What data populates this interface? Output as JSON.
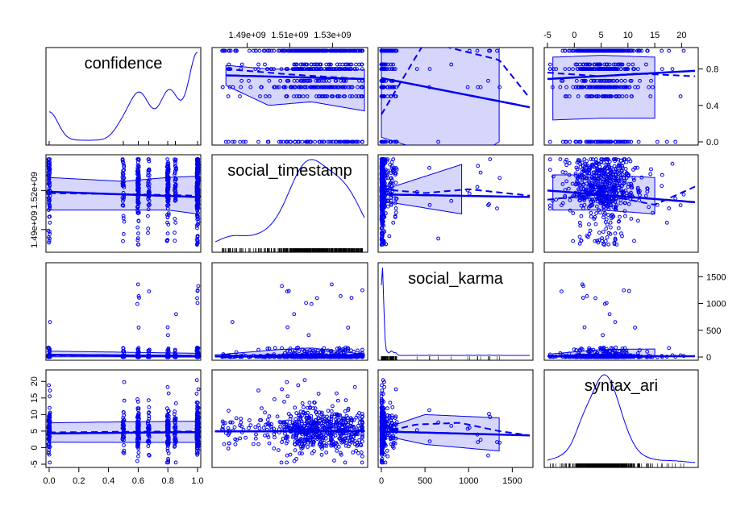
{
  "chart_data": {
    "type": "scatter",
    "title": "",
    "variables": [
      "confidence",
      "social_timestamp",
      "social_karma",
      "syntax_ari"
    ],
    "axis_ticks": {
      "confidence": {
        "values": [
          0.0,
          0.2,
          0.4,
          0.6,
          0.8,
          1.0
        ],
        "labels": [
          "0.0",
          "0.2",
          "0.4",
          "0.6",
          "0.8",
          "1.0"
        ],
        "range": [
          0.0,
          1.0
        ]
      },
      "social_timestamp": {
        "values": [
          1490000000.0,
          1520000000.0
        ],
        "labels": [
          "1.49e+09",
          "1.52e+09"
        ],
        "top_values": [
          1490000000.0,
          1510000000.0,
          1530000000.0
        ],
        "top_labels": [
          "1.49e+09",
          "1.51e+09",
          "1.53e+09"
        ],
        "range": [
          1475000000.0,
          1545000000.0
        ]
      },
      "social_karma": {
        "values": [
          0,
          500,
          1000,
          1500
        ],
        "labels": [
          "0",
          "500",
          "1000",
          "1500"
        ],
        "right_values": [
          0,
          500,
          1000,
          1500
        ],
        "right_labels": [
          "0",
          "500",
          "1000",
          "1500"
        ],
        "range": [
          0,
          1700
        ]
      },
      "syntax_ari": {
        "values": [
          -5,
          0,
          5,
          10,
          15,
          20
        ],
        "labels": [
          "-5",
          "0",
          "5",
          "10",
          "15",
          "20"
        ],
        "top_values": [
          -5,
          0,
          5,
          10,
          15,
          20
        ],
        "top_labels": [
          "-5",
          "0",
          "5",
          "10",
          "15",
          "20"
        ],
        "range": [
          -5,
          22.5
        ]
      },
      "confidence_right": {
        "values": [
          0.0,
          0.4,
          0.8
        ],
        "labels": [
          "0.0",
          "0.4",
          "0.8"
        ]
      },
      "syntax_ari_left": {
        "values": [
          -5,
          0,
          5,
          10,
          15,
          20
        ],
        "labels": [
          "-5",
          "0",
          "5",
          "10",
          "15",
          "20"
        ]
      }
    },
    "series_color": "#0000ee",
    "panels": {
      "conf_vs_ts": {
        "fit_solid": [
          [
            1480000000.0,
            0.73
          ],
          [
            1545000000.0,
            0.69
          ]
        ],
        "fit_dashed": [
          [
            1480000000.0,
            0.8
          ],
          [
            1510000000.0,
            0.74
          ],
          [
            1545000000.0,
            0.69
          ]
        ],
        "band": [
          [
            1480000000.0,
            0.84,
            0.62
          ],
          [
            1500000000.0,
            0.8,
            0.4
          ],
          [
            1520000000.0,
            0.79,
            0.44
          ],
          [
            1545000000.0,
            0.79,
            0.34
          ]
        ]
      },
      "conf_vs_karma": {
        "fit_solid": [
          [
            0,
            0.7
          ],
          [
            1700,
            0.38
          ]
        ],
        "fit_dashed": [
          [
            0,
            0.3
          ],
          [
            500,
            1.1
          ],
          [
            1350,
            0.9
          ],
          [
            1700,
            0.48
          ]
        ],
        "band": [
          [
            0,
            1.05,
            0.05
          ],
          [
            500,
            1.05,
            -0.1
          ],
          [
            1000,
            1.05,
            -0.2
          ],
          [
            1350,
            1.05,
            0.0
          ]
        ]
      },
      "conf_vs_ari": {
        "fit_solid": [
          [
            -5,
            0.69
          ],
          [
            22.5,
            0.78
          ]
        ],
        "fit_dashed": [
          [
            -5,
            0.76
          ],
          [
            5,
            0.72
          ],
          [
            12,
            0.75
          ],
          [
            22.5,
            0.72
          ]
        ],
        "band": [
          [
            -4,
            0.93,
            0.24
          ],
          [
            5,
            0.95,
            0.26
          ],
          [
            15,
            0.93,
            0.26
          ]
        ]
      },
      "ts_vs_conf": {
        "fit_solid": [
          [
            0,
            1519000000.0
          ],
          [
            1,
            1515000000.0
          ]
        ],
        "fit_dashed": [
          [
            0,
            1518000000.0
          ],
          [
            0.6,
            1517000000.0
          ],
          [
            1,
            1516000000.0
          ]
        ],
        "band": [
          [
            0,
            1530000000.0,
            1505000000.0
          ],
          [
            0.5,
            1527000000.0,
            1505000000.0
          ],
          [
            0.8,
            1530000000.0,
            1505000000.0
          ],
          [
            1,
            1531000000.0,
            1502000000.0
          ]
        ]
      },
      "ts_vs_karma": {
        "fit_solid": [
          [
            0,
            1517000000.0
          ],
          [
            1700,
            1515000000.0
          ]
        ],
        "fit_dashed": [
          [
            0,
            1521000000.0
          ],
          [
            500,
            1518000000.0
          ],
          [
            1000,
            1521000000.0
          ],
          [
            1700,
            1516000000.0
          ]
        ],
        "band": [
          [
            0,
            1520000000.0,
            1512000000.0
          ],
          [
            920,
            1540000000.0,
            1502000000.0
          ]
        ]
      },
      "ts_vs_ari": {
        "fit_solid": [
          [
            -5,
            1520000000.0
          ],
          [
            22.5,
            1511000000.0
          ]
        ],
        "fit_dashed": [
          [
            -5,
            1513000000.0
          ],
          [
            5,
            1517000000.0
          ],
          [
            15,
            1509000000.0
          ],
          [
            22.5,
            1523000000.0
          ]
        ],
        "band": [
          [
            -4,
            1532000000.0,
            1505000000.0
          ],
          [
            5,
            1532000000.0,
            1505000000.0
          ],
          [
            15,
            1530000000.0,
            1502000000.0
          ]
        ]
      },
      "karma_vs_conf": {
        "fit_solid": [
          [
            0,
            40
          ],
          [
            1,
            20
          ]
        ],
        "fit_dashed": [
          [
            0,
            30
          ],
          [
            1,
            25
          ]
        ],
        "band": [
          [
            0,
            110,
            5
          ],
          [
            1,
            70,
            0
          ]
        ]
      },
      "karma_vs_ts": {
        "fit_solid": [
          [
            1475000000.0,
            10
          ],
          [
            1545000000.0,
            15
          ]
        ],
        "fit_dashed": [
          [
            1475000000.0,
            10
          ],
          [
            1510000000.0,
            40
          ],
          [
            1545000000.0,
            15
          ]
        ],
        "band": [
          [
            1475000000.0,
            40,
            0
          ],
          [
            1505000000.0,
            140,
            0
          ],
          [
            1520000000.0,
            170,
            0
          ],
          [
            1545000000.0,
            50,
            0
          ]
        ]
      },
      "karma_vs_ari": {
        "fit_solid": [
          [
            -5,
            15
          ],
          [
            22.5,
            15
          ]
        ],
        "fit_dashed": [
          [
            -5,
            20
          ],
          [
            22.5,
            15
          ]
        ],
        "band": [
          [
            -4,
            60,
            0
          ],
          [
            5,
            140,
            0
          ],
          [
            15,
            150,
            0
          ]
        ]
      },
      "ari_vs_conf": {
        "fit_solid": [
          [
            0,
            4.3
          ],
          [
            1,
            4.7
          ]
        ],
        "fit_dashed": [
          [
            0,
            4.6
          ],
          [
            0.5,
            4.8
          ],
          [
            1,
            4.9
          ]
        ],
        "band": [
          [
            0,
            7.5,
            1.7
          ],
          [
            0.5,
            7.8,
            1.6
          ],
          [
            1,
            8.0,
            1.6
          ]
        ]
      },
      "ari_vs_ts": {
        "fit_solid": [
          [
            1475000000.0,
            4.9
          ],
          [
            1545000000.0,
            5.0
          ]
        ],
        "fit_dashed": [
          [
            1475000000.0,
            5.0
          ],
          [
            1545000000.0,
            5.0
          ]
        ],
        "band": [
          [
            1475000000.0,
            5.1,
            4.8
          ],
          [
            1545000000.0,
            5.2,
            4.8
          ]
        ]
      },
      "ari_vs_karma": {
        "fit_solid": [
          [
            0,
            4.9
          ],
          [
            1700,
            3.7
          ]
        ],
        "fit_dashed": [
          [
            0,
            4.5
          ],
          [
            400,
            7.0
          ],
          [
            900,
            7.5
          ],
          [
            1350,
            5.0
          ],
          [
            1700,
            3.7
          ]
        ],
        "band": [
          [
            0,
            5.5,
            3.8
          ],
          [
            500,
            10.0,
            1.0
          ],
          [
            1350,
            9.0,
            -1.0
          ]
        ]
      }
    }
  }
}
